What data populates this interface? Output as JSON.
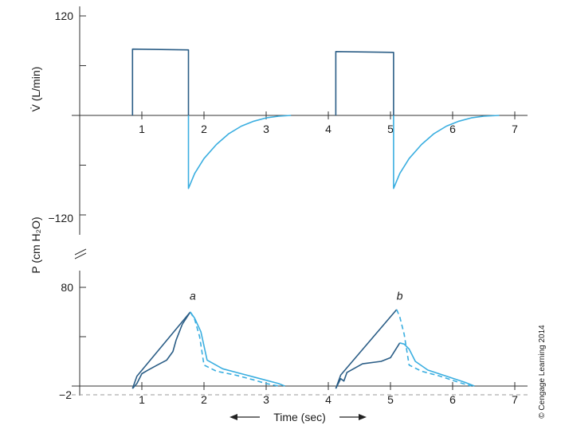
{
  "chart_data": [
    {
      "type": "line",
      "ylabel": "V̇ (L/min)",
      "xlim": [
        0,
        7
      ],
      "ylim": [
        -120,
        120
      ],
      "x_ticks": [
        "1",
        "2",
        "3",
        "4",
        "5",
        "6",
        "7"
      ],
      "y_tick_labels": [
        "120",
        "−120"
      ],
      "colors": {
        "inspiration": "#2a5d86",
        "expiration": "#3aaee0"
      },
      "series": [
        {
          "segment": "inspiration",
          "x": [
            0.85,
            0.85,
            1.75,
            1.75
          ],
          "y": [
            0,
            80,
            79,
            0
          ]
        },
        {
          "segment": "expiration",
          "x": [
            1.75,
            1.75,
            1.85,
            2.0,
            2.2,
            2.4,
            2.6,
            2.8,
            3.0,
            3.2,
            3.4
          ],
          "y": [
            0,
            -88,
            -70,
            -52,
            -35,
            -22,
            -13,
            -7,
            -3,
            -1,
            0
          ]
        },
        {
          "segment": "inspiration",
          "x": [
            4.12,
            4.12,
            5.05,
            5.05
          ],
          "y": [
            0,
            77,
            76,
            0
          ]
        },
        {
          "segment": "expiration",
          "x": [
            5.05,
            5.05,
            5.15,
            5.3,
            5.5,
            5.7,
            5.9,
            6.1,
            6.3,
            6.5,
            6.75
          ],
          "y": [
            0,
            -88,
            -70,
            -52,
            -35,
            -22,
            -13,
            -7,
            -3,
            -1,
            0
          ]
        }
      ]
    },
    {
      "type": "line",
      "ylabel": "P (cm H₂O)",
      "xlabel": "Time (sec)",
      "xlim": [
        0,
        7
      ],
      "ylim": [
        -2,
        80
      ],
      "x_ticks": [
        "1",
        "2",
        "3",
        "4",
        "5",
        "6",
        "7"
      ],
      "y_tick_labels": [
        "80",
        "−2"
      ],
      "baseline": -2,
      "colors": {
        "dark": "#2a5d86",
        "light": "#3aaee0",
        "baseline": "#999999"
      },
      "annotations": [
        {
          "text": "a",
          "x": 1.82,
          "y": 70
        },
        {
          "text": "b",
          "x": 5.15,
          "y": 70
        }
      ],
      "series": [
        {
          "segment": "dark-upper",
          "x": [
            0.85,
            0.92,
            1.78
          ],
          "y": [
            -2,
            8,
            60
          ]
        },
        {
          "segment": "dark-lower",
          "x": [
            0.85,
            0.92,
            1.0,
            1.1,
            1.25,
            1.4,
            1.5,
            1.55,
            1.65,
            1.78
          ],
          "y": [
            -2,
            2,
            10,
            13,
            17,
            21,
            28,
            37,
            50,
            60
          ]
        },
        {
          "segment": "light-dashed",
          "x": [
            1.78,
            1.85,
            1.93,
            2.0,
            2.2,
            2.5,
            2.8,
            3.0,
            3.2
          ],
          "y": [
            60,
            54,
            40,
            17,
            12,
            9,
            5,
            2,
            0
          ]
        },
        {
          "segment": "light-solid",
          "x": [
            1.78,
            1.85,
            1.95,
            2.05,
            2.3,
            2.6,
            2.9,
            3.2,
            3.3
          ],
          "y": [
            60,
            55,
            44,
            21,
            14,
            10,
            6,
            2,
            0
          ]
        },
        {
          "segment": "dark-upper",
          "x": [
            4.12,
            4.2,
            5.1
          ],
          "y": [
            -2,
            9,
            62
          ]
        },
        {
          "segment": "dark-lower",
          "x": [
            4.12,
            4.2,
            4.25,
            4.3,
            4.55,
            4.85,
            5.0,
            5.15
          ],
          "y": [
            -2,
            6,
            4,
            11,
            18,
            20,
            23,
            35
          ]
        },
        {
          "segment": "light-dashed",
          "x": [
            5.1,
            5.15,
            5.22,
            5.3,
            5.5,
            5.8,
            6.1,
            6.3
          ],
          "y": [
            62,
            56,
            42,
            17,
            12,
            8,
            3,
            0
          ]
        },
        {
          "segment": "light-solid",
          "x": [
            5.15,
            5.22,
            5.3,
            5.4,
            5.6,
            5.9,
            6.2,
            6.35
          ],
          "y": [
            35,
            34,
            30,
            20,
            13,
            8,
            3,
            0
          ]
        }
      ]
    }
  ],
  "credit": "© Cengage Learning 2014"
}
